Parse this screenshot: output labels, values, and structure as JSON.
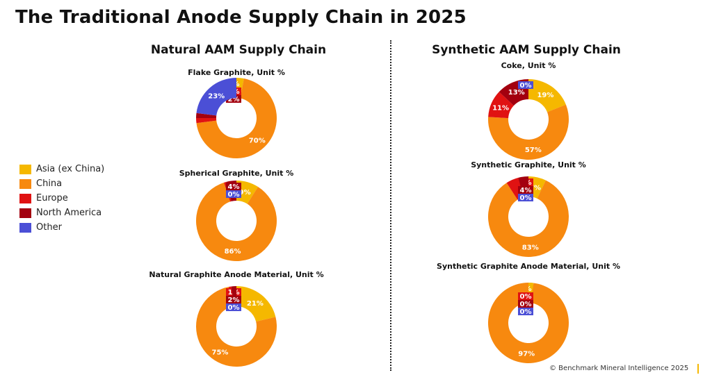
{
  "title": "The Traditional Anode Supply Chain in 2025",
  "sections": {
    "natural": "Natural AAM Supply Chain",
    "synthetic": "Synthetic AAM Supply Chain"
  },
  "footer": "© Benchmark Mineral Intelligence 2025",
  "legend": [
    {
      "label": "Asia (ex China)",
      "color": "#f5b800"
    },
    {
      "label": "China",
      "color": "#f7890f"
    },
    {
      "label": "Europe",
      "color": "#e01212"
    },
    {
      "label": "North America",
      "color": "#a3000f"
    },
    {
      "label": "Other",
      "color": "#4b4fd6"
    }
  ],
  "chart_data": [
    {
      "type": "pie",
      "title": "Flake Graphite, Unit %",
      "categories": [
        "Asia (ex China)",
        "China",
        "Europe",
        "North America",
        "Other"
      ],
      "values": [
        3,
        70,
        2,
        2,
        23
      ],
      "labels": [
        "3%",
        "70%",
        "2%",
        "2%",
        "23%"
      ]
    },
    {
      "type": "pie",
      "title": "Spherical Graphite, Unit %",
      "categories": [
        "Asia (ex China)",
        "China",
        "Europe",
        "North America",
        "Other"
      ],
      "values": [
        9,
        86,
        1,
        4,
        0
      ],
      "labels": [
        "9%",
        "86%",
        "",
        "4%",
        "0%"
      ]
    },
    {
      "type": "pie",
      "title": "Natural Graphite Anode Material, Unit %",
      "categories": [
        "Asia (ex China)",
        "China",
        "Europe",
        "North America",
        "Other"
      ],
      "values": [
        21,
        75,
        1,
        2,
        0
      ],
      "labels": [
        "21%",
        "75%",
        "1%",
        "2%",
        "0%"
      ]
    },
    {
      "type": "pie",
      "title": "Coke, Unit %",
      "categories": [
        "Asia (ex China)",
        "China",
        "Europe",
        "North America",
        "Other"
      ],
      "values": [
        19,
        57,
        11,
        13,
        0
      ],
      "labels": [
        "19%",
        "57%",
        "11%",
        "13%",
        "0%"
      ]
    },
    {
      "type": "pie",
      "title": "Synthetic Graphite, Unit %",
      "categories": [
        "Asia (ex China)",
        "China",
        "Europe",
        "North America",
        "Other"
      ],
      "values": [
        7,
        83,
        5,
        4,
        0
      ],
      "labels": [
        "7%",
        "83%",
        "5%",
        "4%",
        "0%"
      ]
    },
    {
      "type": "pie",
      "title": "Synthetic Graphite Anode Material, Unit %",
      "categories": [
        "Asia (ex China)",
        "China",
        "Europe",
        "North America",
        "Other"
      ],
      "values": [
        2,
        97,
        0,
        0,
        0
      ],
      "labels": [
        "2%",
        "97%",
        "0%",
        "0%",
        "0%"
      ]
    }
  ]
}
